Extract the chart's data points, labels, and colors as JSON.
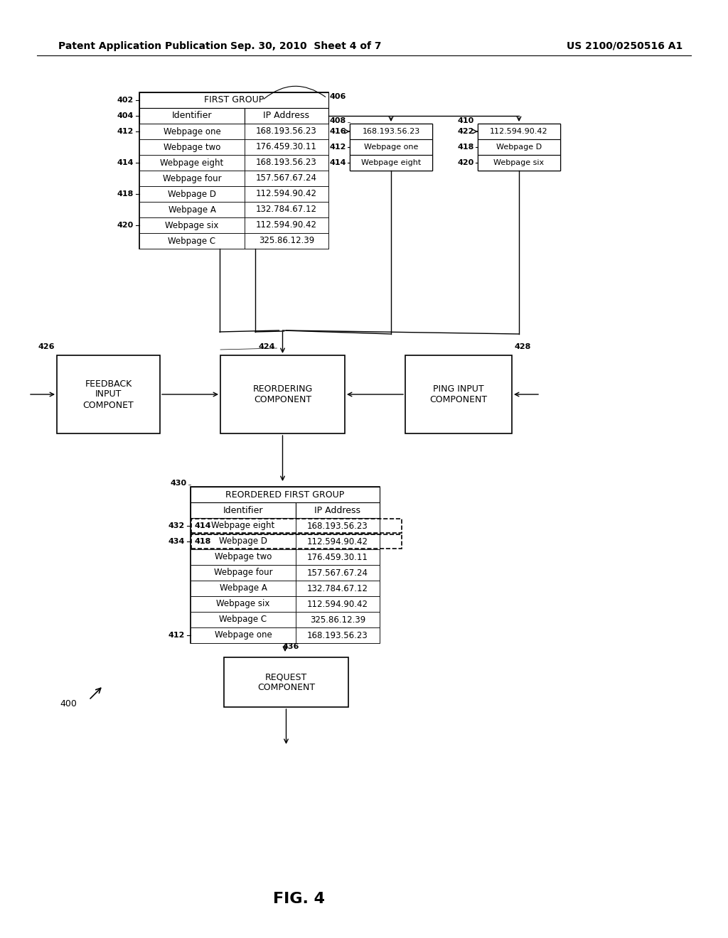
{
  "header_left": "Patent Application Publication",
  "header_mid": "Sep. 30, 2010  Sheet 4 of 7",
  "header_right": "US 2100/0250516 A1",
  "fig_label": "FIG. 4",
  "bg_color": "#ffffff",
  "first_group_title": "FIRST GROUP",
  "first_group_rows": [
    [
      "Webpage one",
      "168.193.56.23"
    ],
    [
      "Webpage two",
      "176.459.30.11"
    ],
    [
      "Webpage eight",
      "168.193.56.23"
    ],
    [
      "Webpage four",
      "157.567.67.24"
    ],
    [
      "Webpage D",
      "112.594.90.42"
    ],
    [
      "Webpage A",
      "132.784.67.12"
    ],
    [
      "Webpage six",
      "112.594.90.42"
    ],
    [
      "Webpage C",
      "325.86.12.39"
    ]
  ],
  "small_table1_ip": "168.193.56.23",
  "small_table1_rows": [
    "Webpage one",
    "Webpage eight"
  ],
  "small_table2_ip": "112.594.90.42",
  "small_table2_rows": [
    "Webpage D",
    "Webpage six"
  ],
  "reordering_label": "REORDERING\nCOMPONENT",
  "feedback_label": "FEEDBACK\nINPUT\nCOMPONET",
  "ping_label": "PING INPUT\nCOMPONENT",
  "reordered_title": "REORDERED FIRST GROUP",
  "reordered_rows": [
    [
      "Webpage eight",
      "168.193.56.23"
    ],
    [
      "Webpage D",
      "112.594.90.42"
    ],
    [
      "Webpage two",
      "176.459.30.11"
    ],
    [
      "Webpage four",
      "157.567.67.24"
    ],
    [
      "Webpage A",
      "132.784.67.12"
    ],
    [
      "Webpage six",
      "112.594.90.42"
    ],
    [
      "Webpage C",
      "325.86.12.39"
    ],
    [
      "Webpage one",
      "168.193.56.23"
    ]
  ],
  "request_label": "REQUEST\nCOMPONENT"
}
